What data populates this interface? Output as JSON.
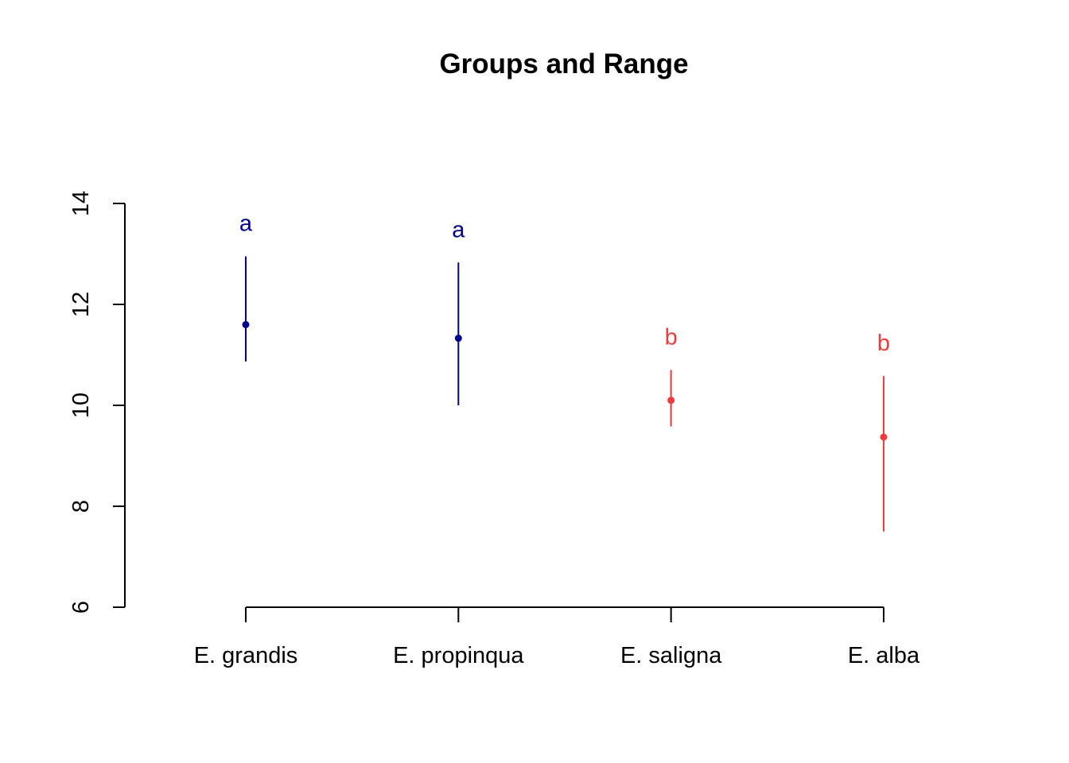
{
  "chart_data": {
    "type": "scatter",
    "title": "Groups and Range",
    "xlabel": "",
    "ylabel": "",
    "categories": [
      "E. grandis",
      "E. propinqua",
      "E. saligna",
      "E. alba"
    ],
    "ylim": [
      6,
      14
    ],
    "yticks": [
      6,
      8,
      10,
      12,
      14
    ],
    "grid": false,
    "points": [
      {
        "category": "E. grandis",
        "mean": 11.6,
        "low": 10.87,
        "high": 12.95,
        "group": "a",
        "color": "#00008B"
      },
      {
        "category": "E. propinqua",
        "mean": 11.33,
        "low": 10.0,
        "high": 12.83,
        "group": "a",
        "color": "#00008B"
      },
      {
        "category": "E. saligna",
        "mean": 10.1,
        "low": 9.58,
        "high": 10.7,
        "group": "b",
        "color": "#EE3B3B"
      },
      {
        "category": "E. alba",
        "mean": 9.37,
        "low": 7.5,
        "high": 10.58,
        "group": "b",
        "color": "#EE3B3B"
      }
    ]
  }
}
